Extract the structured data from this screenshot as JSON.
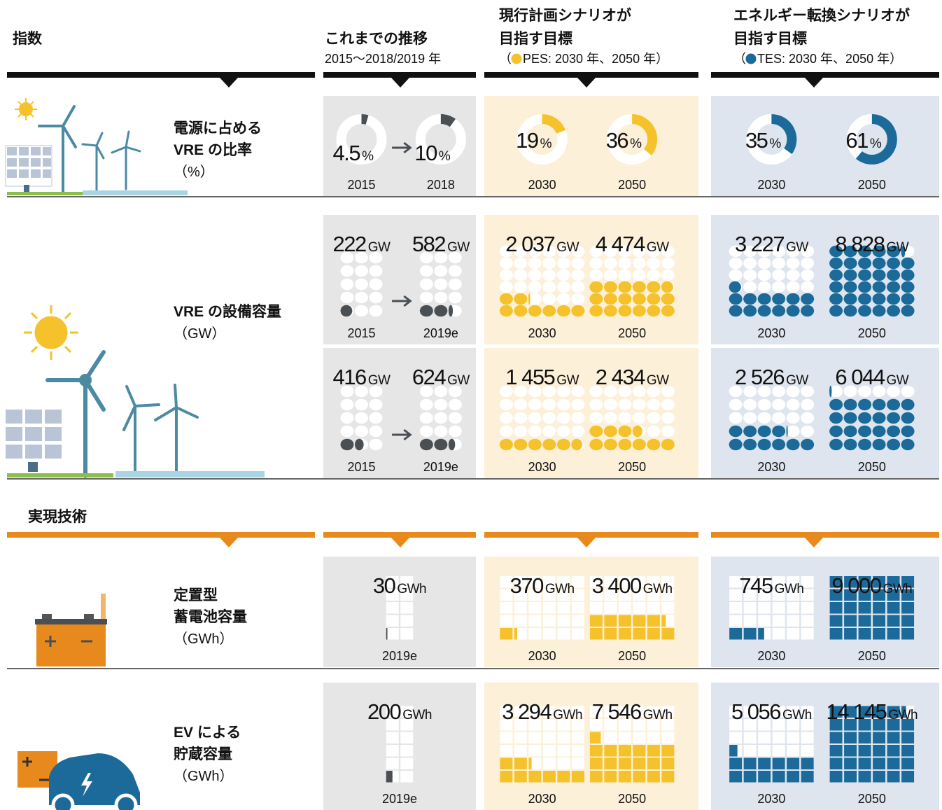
{
  "headers": {
    "index_title": "指数",
    "history": {
      "title": [
        "これまでの推移"
      ],
      "sub": [
        "2015～2018/2019 年"
      ]
    },
    "pes": {
      "title": [
        "現行計画シナリオが",
        "目指す目標"
      ],
      "sub": [
        "（",
        "PES: 2030 年、2050 年）"
      ]
    },
    "tes": {
      "title": [
        "エネルギー転換シナリオが",
        "目指す目標"
      ],
      "sub": [
        "（",
        "TES: 2030 年、2050 年）"
      ]
    }
  },
  "tech_title": "実現技術",
  "rows": [
    {
      "label": [
        "電源に占める",
        "VRE の比率"
      ],
      "unit_label": "（%）",
      "unit": "%",
      "panels": [
        {
          "history": [
            {
              "year": "2015",
              "value": 4.5
            },
            {
              "year": "2018",
              "value": 10
            }
          ],
          "pes": [
            {
              "year": "2030",
              "value": 19
            },
            {
              "year": "2050",
              "value": 36
            }
          ],
          "tes": [
            {
              "year": "2030",
              "value": 35
            },
            {
              "year": "2050",
              "value": 61
            }
          ]
        }
      ]
    },
    {
      "label": [
        "VRE の設備容量"
      ],
      "unit_label": "（GW）",
      "unit": "GW",
      "panels": [
        {
          "history": [
            {
              "year": "2015",
              "value": 222
            },
            {
              "year": "2019e",
              "value": 582
            }
          ],
          "pes": [
            {
              "year": "2030",
              "value": 2037,
              "value_label": "2 037"
            },
            {
              "year": "2050",
              "value": 4474,
              "value_label": "4 474"
            }
          ],
          "tes": [
            {
              "year": "2030",
              "value": 3227,
              "value_label": "3 227"
            },
            {
              "year": "2050",
              "value": 8828,
              "value_label": "8 828"
            }
          ]
        },
        {
          "history": [
            {
              "year": "2015",
              "value": 416
            },
            {
              "year": "2019e",
              "value": 624
            }
          ],
          "pes": [
            {
              "year": "2030",
              "value": 1455,
              "value_label": "1 455"
            },
            {
              "year": "2050",
              "value": 2434,
              "value_label": "2 434"
            }
          ],
          "tes": [
            {
              "year": "2030",
              "value": 2526,
              "value_label": "2 526"
            },
            {
              "year": "2050",
              "value": 6044,
              "value_label": "6 044"
            }
          ]
        }
      ]
    },
    {
      "label": [
        "定置型",
        "蓄電池容量"
      ],
      "unit_label": "（GWh）",
      "unit": "GWh",
      "panels": [
        {
          "history": [
            {
              "year": "2019e",
              "value": 30
            }
          ],
          "pes": [
            {
              "year": "2030",
              "value": 370
            },
            {
              "year": "2050",
              "value": 3400,
              "value_label": "3 400"
            }
          ],
          "tes": [
            {
              "year": "2030",
              "value": 745
            },
            {
              "year": "2050",
              "value": 9000,
              "value_label": "9 000"
            }
          ]
        }
      ]
    },
    {
      "label": [
        "EV による",
        "貯蔵容量"
      ],
      "unit_label": "（GWh）",
      "unit": "GWh",
      "panels": [
        {
          "history": [
            {
              "year": "2019e",
              "value": 200
            }
          ],
          "pes": [
            {
              "year": "2030",
              "value": 3294,
              "value_label": "3 294"
            },
            {
              "year": "2050",
              "value": 7546,
              "value_label": "7 546"
            }
          ],
          "tes": [
            {
              "year": "2030",
              "value": 5056,
              "value_label": "5 056"
            },
            {
              "year": "2050",
              "value": 14145,
              "value_label": "14 145"
            }
          ]
        }
      ]
    }
  ]
}
